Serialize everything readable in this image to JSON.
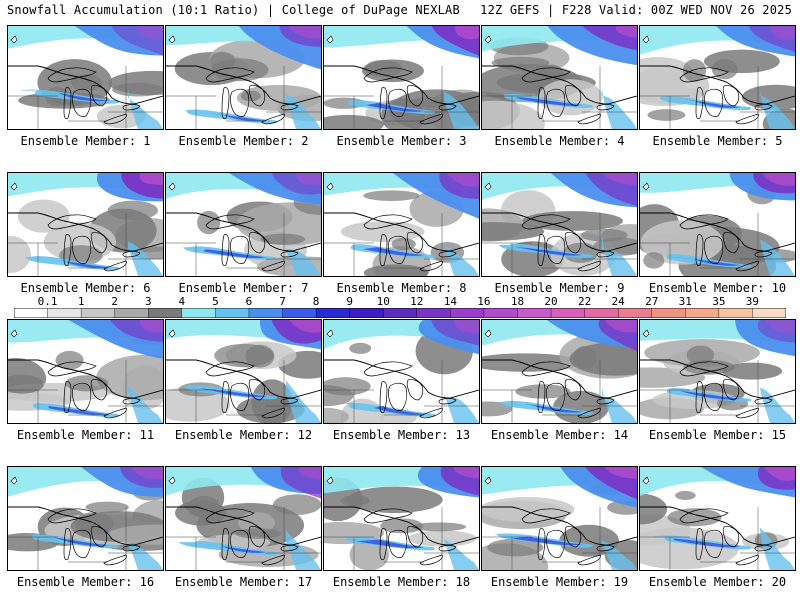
{
  "header": {
    "left_title": "Snowfall Accumulation (10:1 Ratio) | College of DuPage NEXLAB",
    "right_title": "12Z GEFS | F228 Valid: 00Z WED NOV 26 2025"
  },
  "legend": {
    "tick_labels": [
      "0.1",
      "1",
      "2",
      "3",
      "4",
      "5",
      "6",
      "7",
      "8",
      "9",
      "10",
      "12",
      "14",
      "16",
      "18",
      "20",
      "22",
      "24",
      "27",
      "31",
      "35",
      "39"
    ],
    "colors": [
      "#ffffff",
      "#e6e6e6",
      "#c8c8c8",
      "#a9a9a9",
      "#7a7a7a",
      "#8fe8ef",
      "#66c2ee",
      "#4a8fee",
      "#3d5ce8",
      "#2b2bd6",
      "#3a1ec4",
      "#5b2dc0",
      "#7a35c6",
      "#9a3fcb",
      "#b04ccb",
      "#c75bc9",
      "#d960b8",
      "#e46aa4",
      "#eb7c91",
      "#f19384",
      "#f5aa8c",
      "#f8c4a6",
      "#fadcc4"
    ]
  },
  "members": [
    {
      "label": "Ensemble Member: 1"
    },
    {
      "label": "Ensemble Member: 2"
    },
    {
      "label": "Ensemble Member: 3"
    },
    {
      "label": "Ensemble Member: 4"
    },
    {
      "label": "Ensemble Member: 5"
    },
    {
      "label": "Ensemble Member: 6"
    },
    {
      "label": "Ensemble Member: 7"
    },
    {
      "label": "Ensemble Member: 8"
    },
    {
      "label": "Ensemble Member: 9"
    },
    {
      "label": "Ensemble Member: 10"
    },
    {
      "label": "Ensemble Member: 11"
    },
    {
      "label": "Ensemble Member: 12"
    },
    {
      "label": "Ensemble Member: 13"
    },
    {
      "label": "Ensemble Member: 14"
    },
    {
      "label": "Ensemble Member: 15"
    },
    {
      "label": "Ensemble Member: 16"
    },
    {
      "label": "Ensemble Member: 17"
    },
    {
      "label": "Ensemble Member: 18"
    },
    {
      "label": "Ensemble Member: 19"
    },
    {
      "label": "Ensemble Member: 20"
    }
  ]
}
